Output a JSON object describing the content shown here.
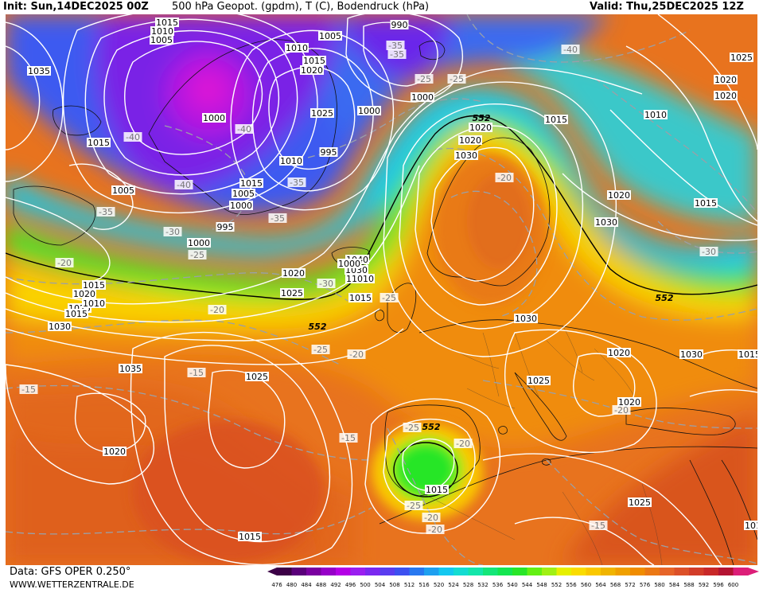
{
  "header": {
    "init": "Init: Sun,14DEC2025 00Z",
    "title": "500 hPa Geopot. (gpdm), T (C), Bodendruck (hPa)",
    "valid": "Valid: Thu,25DEC2025 12Z"
  },
  "footer": {
    "data_source": "Data: GFS OPER 0.250°",
    "site": "WWW.WETTERZENTRALE.DE"
  },
  "legend": {
    "values": [
      "476",
      "480",
      "484",
      "488",
      "492",
      "496",
      "500",
      "504",
      "508",
      "512",
      "516",
      "520",
      "524",
      "528",
      "532",
      "536",
      "540",
      "544",
      "548",
      "552",
      "556",
      "560",
      "564",
      "568",
      "572",
      "576",
      "580",
      "584",
      "588",
      "592",
      "596",
      "600"
    ],
    "colors": [
      "#3c0046",
      "#5a007a",
      "#7a00a0",
      "#9600c8",
      "#b400e6",
      "#9a1ef0",
      "#7a28f0",
      "#5a3cf0",
      "#3c50f0",
      "#2878f0",
      "#1ea0f0",
      "#14c8f0",
      "#14dcd2",
      "#14e6aa",
      "#14e678",
      "#14e650",
      "#28e628",
      "#64f014",
      "#a0f014",
      "#e6f000",
      "#fadc00",
      "#fac800",
      "#f0b400",
      "#f0a000",
      "#f08c00",
      "#eb7814",
      "#e66428",
      "#dc5028",
      "#d23c28",
      "#c82828",
      "#b41432",
      "#dc1e78"
    ]
  },
  "pressure_labels": [
    "1015",
    "1010",
    "1005",
    "990",
    "1005",
    "1010",
    "1015",
    "1020",
    "1035",
    "1000",
    "1025",
    "1000",
    "1000",
    "995",
    "1010",
    "1015",
    "1005",
    "1000",
    "995",
    "1000",
    "1015",
    "1040",
    "1030",
    "1020",
    "1020",
    "1010",
    "1015",
    "1020",
    "1025",
    "1030",
    "1035",
    "1025",
    "1020",
    "1015",
    "1025",
    "1010",
    "1015",
    "1020",
    "1030",
    "1030",
    "1005",
    "1010",
    "1015",
    "1000",
    "1010",
    "1020",
    "1025",
    "1030",
    "1020",
    "1030",
    "1015",
    "1020",
    "1025",
    "1015",
    "1020",
    "1020",
    "1015",
    "1025",
    "1015",
    "1010"
  ],
  "temperature_labels": [
    "-35",
    "-40",
    "-35",
    "-25",
    "-25",
    "-40",
    "-40",
    "-40",
    "-35",
    "-30",
    "-35",
    "-25",
    "-20",
    "-30",
    "-20",
    "-35",
    "-20",
    "-25",
    "-25",
    "-20",
    "-15",
    "-15",
    "-20",
    "-25",
    "-15",
    "-20",
    "-15",
    "-25",
    "-20",
    "-20",
    "-30"
  ],
  "height_labels": [
    "552",
    "552",
    "552",
    "552"
  ]
}
